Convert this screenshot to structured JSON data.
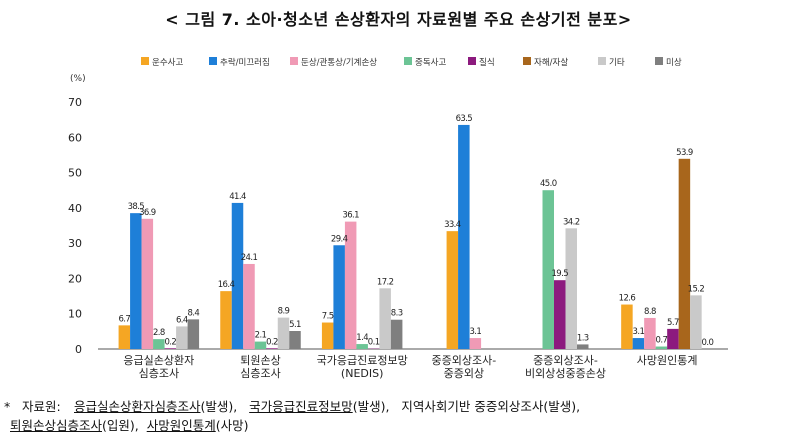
{
  "title": "< 그림 7. 소아·청소년 손상환자의 자료원별 주요 손상기전 분포>",
  "chart_data": {
    "type": "bar",
    "ylabel": "(%)",
    "ylim": [
      0,
      70
    ],
    "yticks": [
      0,
      10,
      20,
      30,
      40,
      50,
      60,
      70
    ],
    "grid": false,
    "legend_position": "top",
    "categories": [
      [
        "응급실손상환자",
        "심층조사"
      ],
      [
        "퇴원손상",
        "심층조사"
      ],
      [
        "국가응급진료정보망",
        "(NEDIS)"
      ],
      [
        "중증외상조사-",
        "중증외상"
      ],
      [
        "중증외상조사-",
        "비외상성중증손상"
      ],
      [
        "사망원인통계"
      ]
    ],
    "series": [
      {
        "name": "운수사고",
        "color": "#F5A623",
        "values": [
          6.7,
          16.4,
          7.5,
          33.4,
          null,
          12.6
        ]
      },
      {
        "name": "추락/미끄러짐",
        "color": "#1E7FD8",
        "values": [
          38.5,
          41.4,
          29.4,
          63.5,
          null,
          3.1
        ]
      },
      {
        "name": "둔상/관통상/기계손상",
        "color": "#F09AB5",
        "values": [
          36.9,
          24.1,
          36.1,
          3.1,
          null,
          8.8
        ]
      },
      {
        "name": "중독사고",
        "color": "#6CC495",
        "values": [
          2.8,
          2.1,
          1.4,
          null,
          45.0,
          0.7
        ]
      },
      {
        "name": "질식",
        "color": "#8C1A7E",
        "values": [
          0.2,
          0.2,
          0.1,
          null,
          19.5,
          5.7
        ]
      },
      {
        "name": "자해/자살",
        "color": "#A8661C",
        "values": [
          null,
          null,
          null,
          null,
          null,
          53.9
        ]
      },
      {
        "name": "기타",
        "color": "#C9C9C9",
        "values": [
          6.4,
          8.9,
          17.2,
          null,
          34.2,
          15.2
        ]
      },
      {
        "name": "미상",
        "color": "#7F7F7F",
        "values": [
          8.4,
          5.1,
          8.3,
          null,
          1.3,
          0.0
        ]
      }
    ],
    "value_labels": [
      [
        "6.7",
        "16.4",
        "7.5",
        "33.4",
        "",
        "12.6"
      ],
      [
        "38.5",
        "41.4",
        "29.4",
        "63.5",
        "",
        "3.1"
      ],
      [
        "36.9",
        "24.1",
        "36.1",
        "3.1",
        "",
        "8.8"
      ],
      [
        "2.8",
        "2.1",
        "1.4",
        "",
        "45.0",
        "0.7"
      ],
      [
        "0.2",
        "0.2",
        "0.1",
        "",
        "19.5",
        "5.7"
      ],
      [
        "",
        "",
        "",
        "",
        "",
        "53.9"
      ],
      [
        "6.4",
        "8.9",
        "17.2",
        "",
        "34.2",
        "15.2"
      ],
      [
        "8.4",
        "5.1",
        "8.3",
        "",
        "1.3",
        "0.0"
      ]
    ]
  },
  "footnote": {
    "mark": "*",
    "label": "자료원:",
    "sources": [
      {
        "text": "응급실손상환자심층조사",
        "note": "(발생),"
      },
      {
        "text": "국가응급진료정보망",
        "note": "(발생),"
      },
      {
        "text": "지역사회기반 중증외상조사",
        "note": "(발생),"
      },
      {
        "text": "퇴원손상심층조사",
        "note": "(입원),"
      },
      {
        "text": "사망원인통계",
        "note": "(사망)"
      }
    ]
  }
}
